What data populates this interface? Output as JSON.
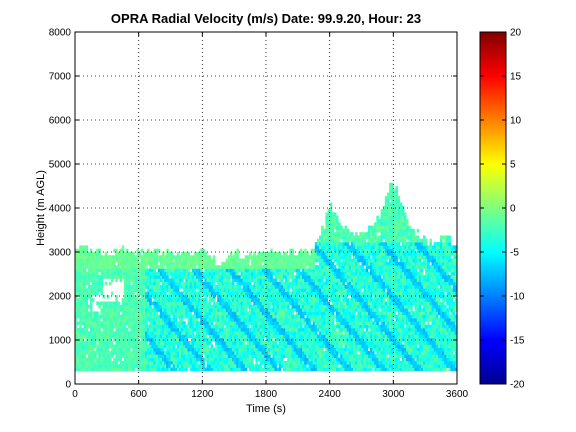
{
  "chart_data": {
    "type": "heatmap",
    "title": "OPRA Radial Velocity (m/s)  Date: 99.9.20, Hour: 23",
    "xlabel": "Time (s)",
    "ylabel": "Height (m AGL)",
    "xlim": [
      0,
      3600
    ],
    "ylim": [
      0,
      8000
    ],
    "x_ticks": [
      "0",
      "600",
      "1200",
      "1800",
      "2400",
      "3000",
      "3600"
    ],
    "y_ticks": [
      "0",
      "1000",
      "2000",
      "3000",
      "4000",
      "5000",
      "6000",
      "7000",
      "8000"
    ],
    "grid": true,
    "colorbar": {
      "range": [
        -20,
        20
      ],
      "ticks": [
        "20",
        "15",
        "10",
        "5",
        "0",
        "-5",
        "-10",
        "-15",
        "-20"
      ],
      "colormap": "jet"
    },
    "data_region": {
      "height_min_m": 300,
      "top_profile_m": [
        [
          0,
          3100
        ],
        [
          150,
          3000
        ],
        [
          300,
          2950
        ],
        [
          450,
          3000
        ],
        [
          600,
          3000
        ],
        [
          750,
          2950
        ],
        [
          900,
          2950
        ],
        [
          1050,
          2900
        ],
        [
          1200,
          2950
        ],
        [
          1350,
          2700
        ],
        [
          1500,
          2950
        ],
        [
          1650,
          2900
        ],
        [
          1800,
          2950
        ],
        [
          1950,
          2950
        ],
        [
          2100,
          2950
        ],
        [
          2250,
          3000
        ],
        [
          2300,
          3300
        ],
        [
          2350,
          3600
        ],
        [
          2400,
          4050
        ],
        [
          2500,
          3600
        ],
        [
          2600,
          3400
        ],
        [
          2700,
          3350
        ],
        [
          2800,
          3500
        ],
        [
          2900,
          3900
        ],
        [
          2980,
          4650
        ],
        [
          3050,
          4300
        ],
        [
          3150,
          3600
        ],
        [
          3300,
          3200
        ],
        [
          3400,
          3200
        ],
        [
          3500,
          3400
        ],
        [
          3600,
          3000
        ]
      ],
      "typical_velocity_ms": [
        -6,
        -1
      ],
      "upper_layer_velocity_ms": -1,
      "streak_velocity_ms": -8
    }
  }
}
